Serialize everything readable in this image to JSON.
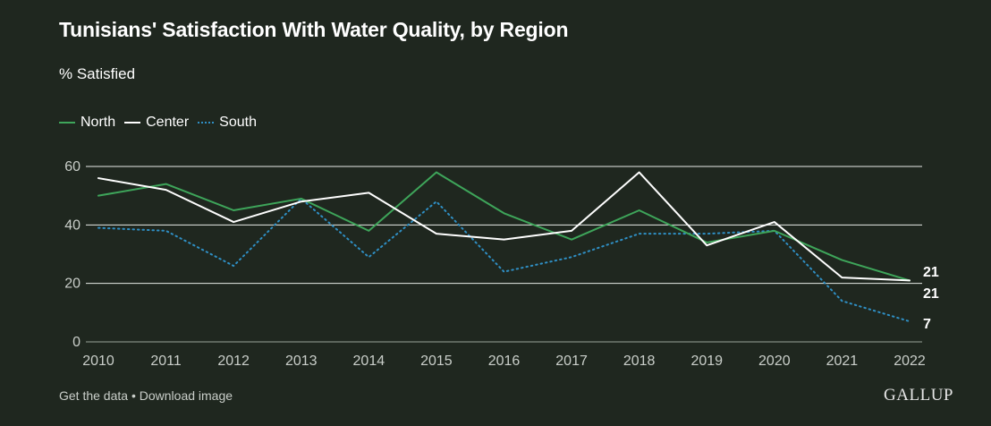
{
  "header": {
    "title": "Tunisians' Satisfaction With Water Quality, by Region",
    "subtitle": "% Satisfied"
  },
  "footer": {
    "get_data": "Get the data",
    "separator": " • ",
    "download": "Download image",
    "logo": "GALLUP"
  },
  "legend": {
    "items": [
      {
        "label": "North",
        "color": "#3ea55a",
        "style": "solid"
      },
      {
        "label": "Center",
        "color": "#ffffff",
        "style": "solid"
      },
      {
        "label": "South",
        "color": "#2f8fc4",
        "style": "dotted"
      }
    ]
  },
  "chart_data": {
    "type": "line",
    "title": "Tunisians' Satisfaction With Water Quality, by Region",
    "subtitle": "% Satisfied",
    "xlabel": "",
    "ylabel": "",
    "x": [
      2010,
      2011,
      2012,
      2013,
      2014,
      2015,
      2016,
      2017,
      2018,
      2019,
      2020,
      2021,
      2022
    ],
    "ylim": [
      0,
      60
    ],
    "yticks": [
      0,
      20,
      40,
      60
    ],
    "grid": true,
    "legend_position": "top-left",
    "series": [
      {
        "name": "North",
        "color": "#3ea55a",
        "style": "solid",
        "values": [
          50,
          54,
          45,
          49,
          38,
          58,
          44,
          35,
          45,
          34,
          38,
          28,
          21
        ]
      },
      {
        "name": "Center",
        "color": "#ffffff",
        "style": "solid",
        "values": [
          56,
          52,
          41,
          48,
          51,
          37,
          35,
          38,
          58,
          33,
          41,
          22,
          21
        ]
      },
      {
        "name": "South",
        "color": "#2f8fc4",
        "style": "dotted",
        "values": [
          39,
          38,
          26,
          49,
          29,
          48,
          24,
          29,
          37,
          37,
          38,
          14,
          7
        ]
      }
    ],
    "end_labels": [
      "21",
      "21",
      "7"
    ]
  }
}
